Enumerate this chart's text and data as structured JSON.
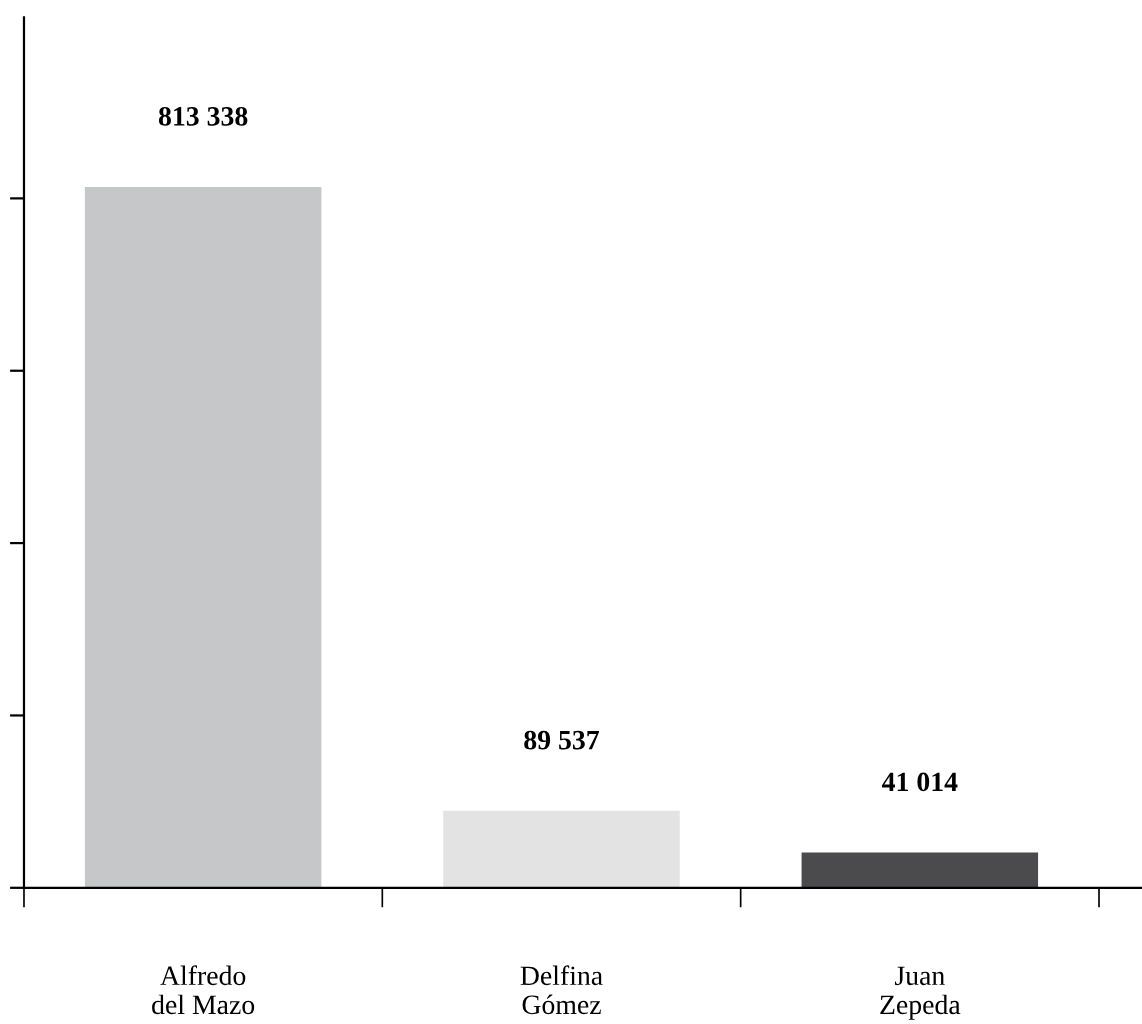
{
  "chart_data": {
    "type": "bar",
    "categories": [
      "Alfredo\ndel Mazo",
      "Delfina\nGómez",
      "Juan\nZepeda"
    ],
    "values": [
      813338,
      89537,
      41014
    ],
    "colors": [
      "#c6c7c9",
      "#e3e3e4",
      "#4b4b4d"
    ],
    "value_labels": [
      "813 338",
      "89 537",
      "41 014"
    ],
    "ylim": [
      0,
      1010000
    ],
    "yticks": [
      {
        "value": 0,
        "label": null
      },
      {
        "value": 200000,
        "label": null
      },
      {
        "value": 400000,
        "label": null
      },
      {
        "value": 600000,
        "label": null
      },
      {
        "value": 800000,
        "label": null
      }
    ],
    "grid": false,
    "legend": false
  }
}
